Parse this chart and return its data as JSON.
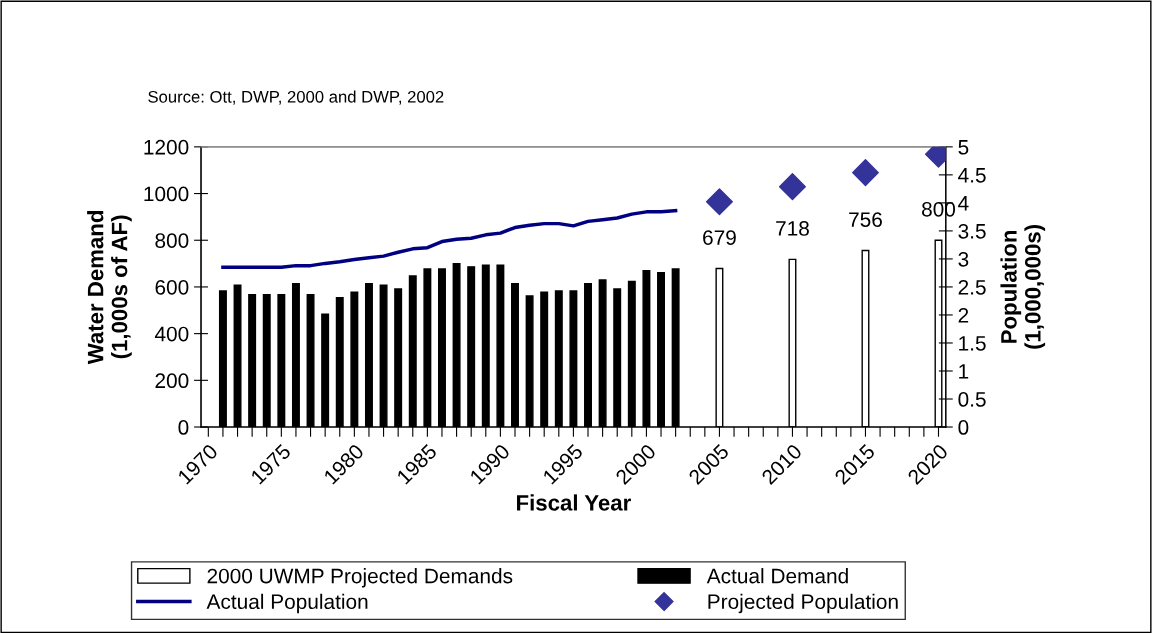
{
  "chart_data": {
    "type": "bar",
    "annotations": [
      "Source: Ott, DWP, 2000 and DWP, 2002"
    ],
    "xlabel": "Fiscal Year",
    "ylabel": "Water Demand\n(1,000s of AF)",
    "y2label": "Population\n(1,000,000s)",
    "categories": [
      "1970",
      null,
      null,
      null,
      null,
      "1975",
      null,
      null,
      null,
      null,
      "1980",
      null,
      null,
      null,
      null,
      "1985",
      null,
      null,
      null,
      null,
      "1990",
      null,
      null,
      null,
      null,
      "1995",
      null,
      null,
      null,
      null,
      "2000",
      null,
      null,
      null,
      null,
      "2005",
      null,
      null,
      null,
      null,
      "2010",
      null,
      null,
      null,
      null,
      "2015",
      null,
      null,
      null,
      null,
      "2020"
    ],
    "series": [
      {
        "name": "2000 UWMP Projected Demands",
        "color": "#ffffff",
        "values": [
          null,
          null,
          null,
          null,
          null,
          null,
          null,
          null,
          null,
          null,
          null,
          null,
          null,
          null,
          null,
          null,
          null,
          null,
          null,
          null,
          null,
          null,
          null,
          null,
          null,
          null,
          null,
          null,
          null,
          null,
          null,
          null,
          null,
          null,
          null,
          679,
          null,
          null,
          null,
          null,
          718,
          null,
          null,
          null,
          null,
          756,
          null,
          null,
          null,
          null,
          800
        ],
        "value_labels": [
          null,
          null,
          null,
          null,
          null,
          null,
          null,
          null,
          null,
          null,
          null,
          null,
          null,
          null,
          null,
          null,
          null,
          null,
          null,
          null,
          null,
          null,
          null,
          null,
          null,
          null,
          null,
          null,
          null,
          null,
          null,
          null,
          null,
          null,
          null,
          "679",
          null,
          null,
          null,
          null,
          "718",
          null,
          null,
          null,
          null,
          "756",
          null,
          null,
          null,
          null,
          "800"
        ]
      },
      {
        "name": "Actual Demand",
        "color": "#000000",
        "values": [
          null,
          583,
          607,
          567,
          567,
          567,
          614,
          567,
          483,
          554,
          577,
          614,
          607,
          591,
          647,
          677,
          677,
          700,
          686,
          693,
          693,
          614,
          561,
          577,
          583,
          583,
          614,
          630,
          591,
          623,
          670,
          661,
          677,
          null,
          null,
          null,
          null,
          null,
          null,
          null,
          null,
          null,
          null,
          null,
          null,
          null,
          null,
          null,
          null,
          null,
          null
        ]
      },
      {
        "name": "Actual Population",
        "type": "line",
        "axis": "y2",
        "color": "#000080",
        "marker": "none",
        "values": [
          null,
          2.85,
          2.85,
          2.85,
          2.85,
          2.85,
          2.88,
          2.88,
          2.92,
          2.95,
          2.99,
          3.02,
          3.05,
          3.12,
          3.18,
          3.2,
          3.31,
          3.35,
          3.37,
          3.43,
          3.46,
          3.56,
          3.6,
          3.63,
          3.63,
          3.59,
          3.67,
          3.7,
          3.73,
          3.8,
          3.84,
          3.84,
          3.86,
          null,
          null,
          null,
          null,
          null,
          null,
          null,
          null,
          null,
          null,
          null,
          null,
          null,
          null,
          null,
          null,
          null,
          null
        ]
      },
      {
        "name": "Projected Population",
        "type": "scatter",
        "axis": "y2",
        "color": "#333399",
        "marker": "diamond",
        "values": [
          null,
          null,
          null,
          null,
          null,
          null,
          null,
          null,
          null,
          null,
          null,
          null,
          null,
          null,
          null,
          null,
          null,
          null,
          null,
          null,
          null,
          null,
          null,
          null,
          null,
          null,
          null,
          null,
          null,
          null,
          null,
          null,
          null,
          null,
          null,
          4.02,
          null,
          null,
          null,
          null,
          4.29,
          null,
          null,
          null,
          null,
          4.54,
          null,
          null,
          null,
          null,
          4.87
        ]
      }
    ],
    "ylim": [
      0,
      1200
    ],
    "yticks": [
      0,
      200,
      400,
      600,
      800,
      1000,
      1200
    ],
    "y2lim": [
      0,
      5
    ],
    "y2ticks": [
      0,
      0.5,
      1,
      1.5,
      2,
      2.5,
      3,
      3.5,
      4,
      4.5,
      5
    ],
    "grid": false,
    "legend": "bottom"
  }
}
